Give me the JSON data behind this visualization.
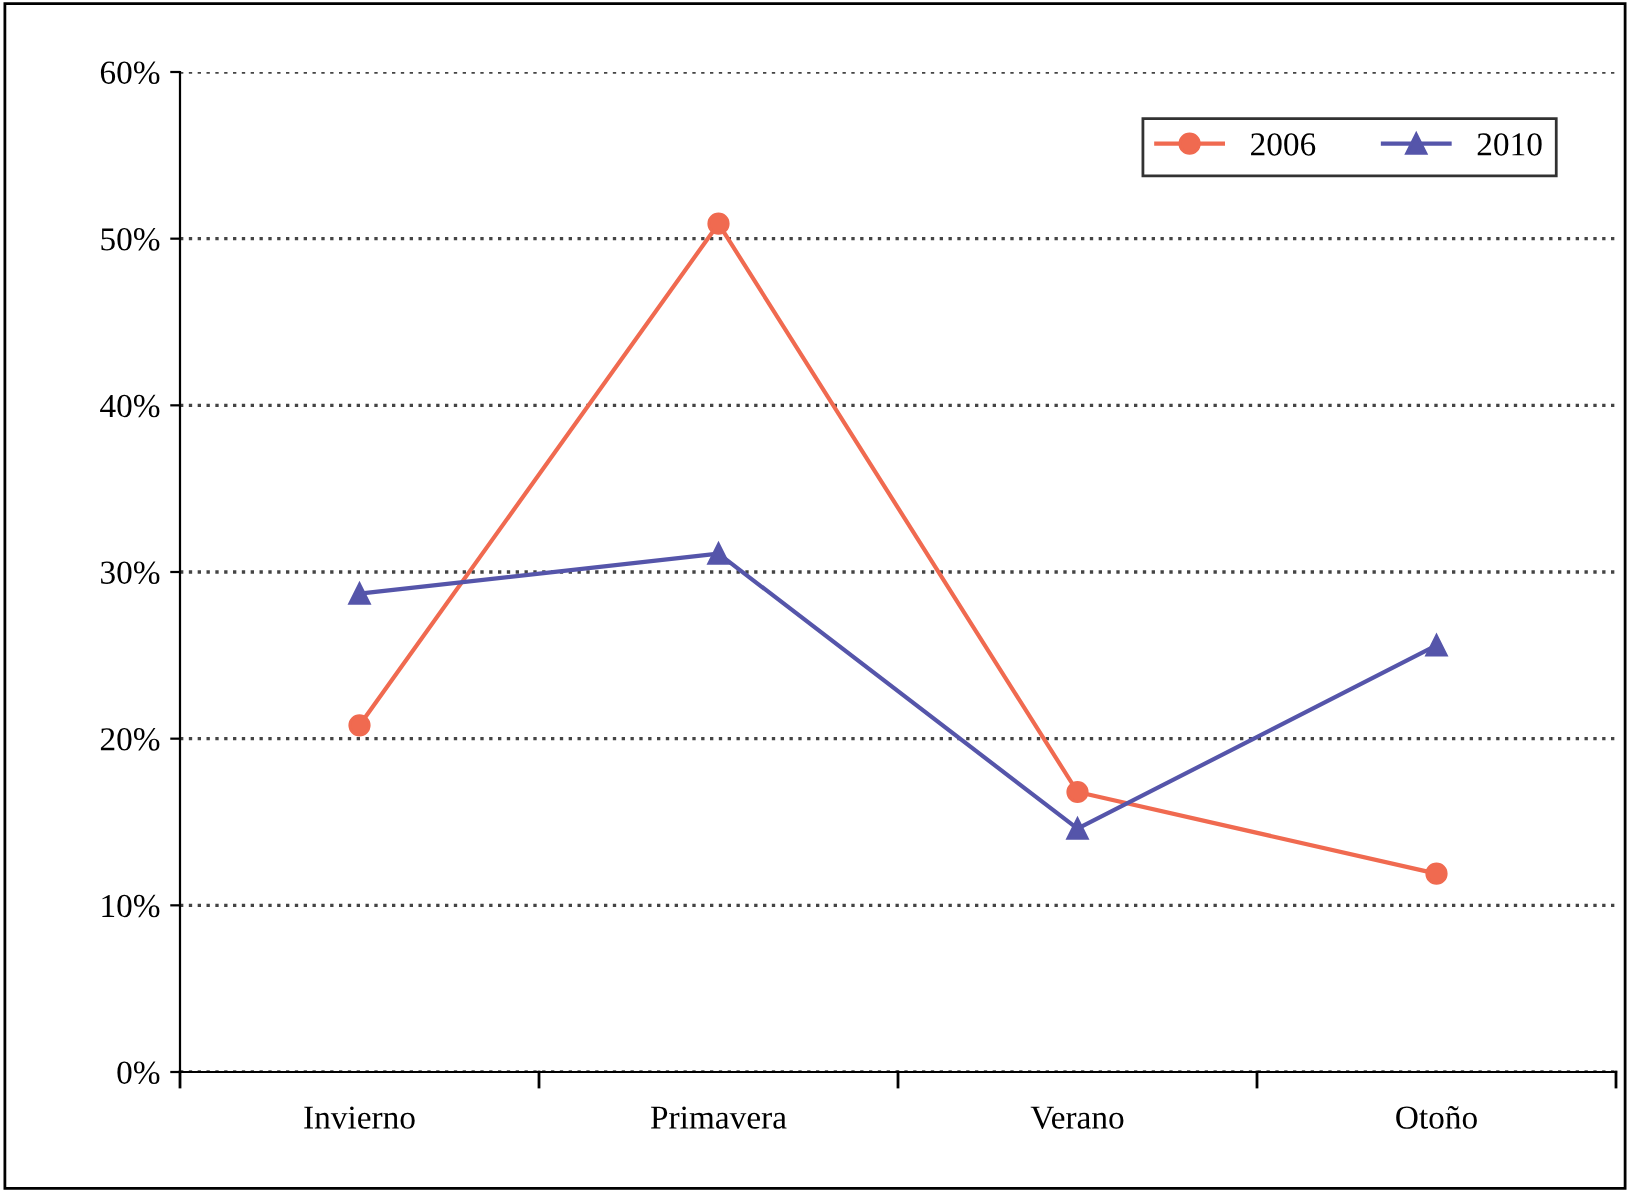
{
  "chart_data": {
    "type": "line",
    "categories": [
      "Invierno",
      "Primavera",
      "Verano",
      "Otoño"
    ],
    "series": [
      {
        "name": "2006",
        "color": "#f06a50",
        "values": [
          20.8,
          50.9,
          16.8,
          11.9
        ],
        "marker": "circle"
      },
      {
        "name": "2010",
        "color": "#5555aa",
        "values": [
          28.7,
          31.1,
          14.6,
          25.6
        ],
        "marker": "triangle"
      }
    ],
    "ylim": [
      0,
      60
    ],
    "yticks": [
      {
        "value": 0,
        "label": "0%"
      },
      {
        "value": 10,
        "label": "10%"
      },
      {
        "value": 20,
        "label": "20%"
      },
      {
        "value": 30,
        "label": "30%"
      },
      {
        "value": 40,
        "label": "40%"
      },
      {
        "value": 50,
        "label": "50%"
      },
      {
        "value": 60,
        "label": "60%"
      }
    ],
    "grid": "y",
    "legend": "top right",
    "line_style": "solid"
  }
}
